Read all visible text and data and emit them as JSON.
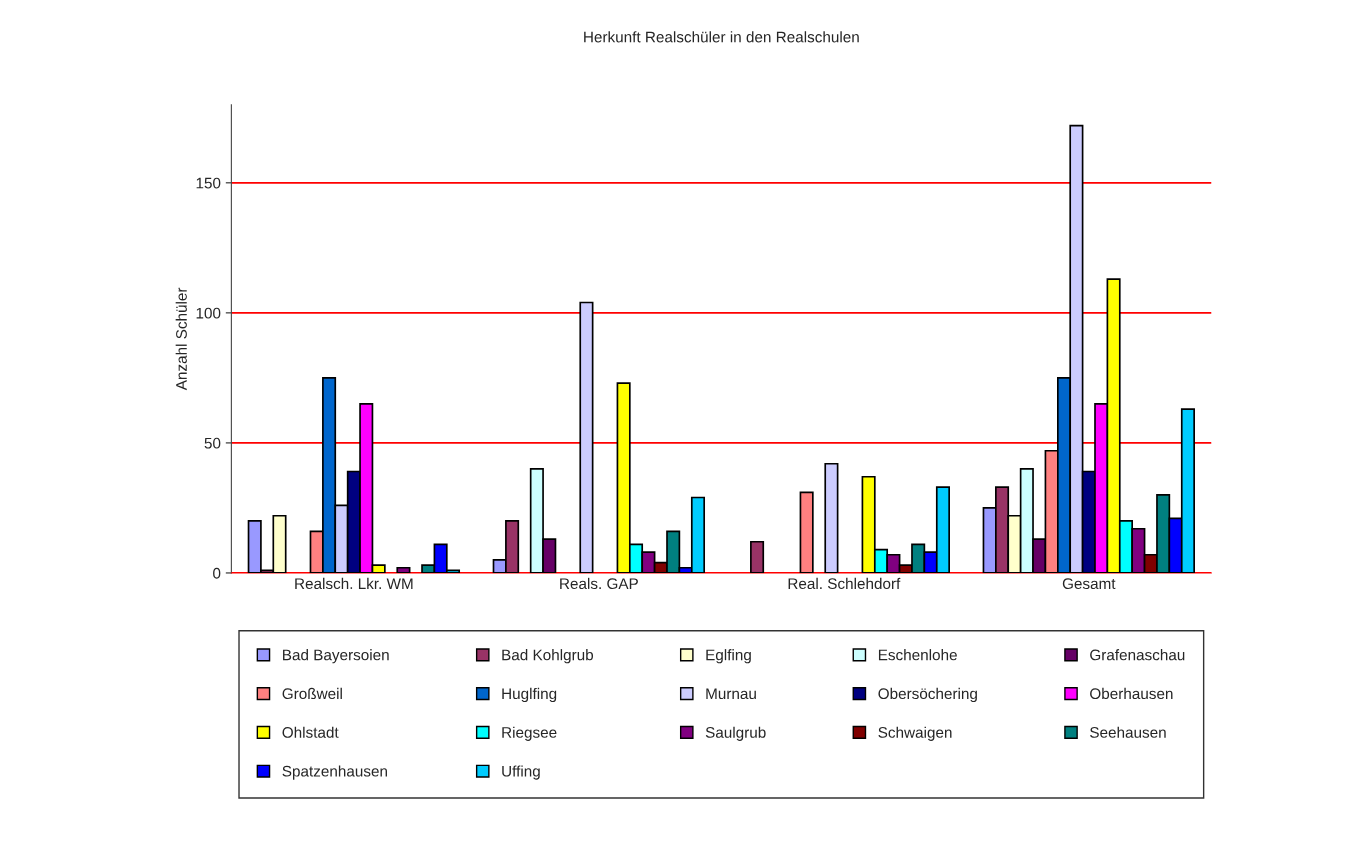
{
  "chart_data": {
    "type": "bar",
    "title": "Herkunft Realschüler in den Realschulen",
    "ylabel": "Anzahl Schüler",
    "categories": [
      "Realsch. Lkr. WM",
      "Reals. GAP",
      "Real. Schlehdorf",
      "Gesamt"
    ],
    "ylim": [
      0,
      180
    ],
    "yticks": [
      0,
      50,
      100,
      150
    ],
    "grid": "y",
    "legend": "bottom",
    "series": [
      {
        "name": "Bad Bayersoien",
        "color": "#9999ff",
        "values": [
          20,
          5,
          0,
          25
        ]
      },
      {
        "name": "Bad Kohlgrub",
        "color": "#993366",
        "values": [
          1,
          20,
          12,
          33
        ]
      },
      {
        "name": "Eglfing",
        "color": "#ffffcc",
        "values": [
          22,
          0,
          0,
          22
        ]
      },
      {
        "name": "Eschenlohe",
        "color": "#ccffff",
        "values": [
          0,
          40,
          0,
          40
        ]
      },
      {
        "name": "Grafenaschau",
        "color": "#660066",
        "values": [
          0,
          13,
          0,
          13
        ]
      },
      {
        "name": "Großweil",
        "color": "#ff8080",
        "values": [
          16,
          0,
          31,
          47
        ]
      },
      {
        "name": "Huglfing",
        "color": "#0066cc",
        "values": [
          75,
          0,
          0,
          75
        ]
      },
      {
        "name": "Murnau",
        "color": "#ccccff",
        "values": [
          26,
          104,
          42,
          172
        ]
      },
      {
        "name": "Obersöchering",
        "color": "#000080",
        "values": [
          39,
          0,
          0,
          39
        ]
      },
      {
        "name": "Oberhausen",
        "color": "#ff00ff",
        "values": [
          65,
          0,
          0,
          65
        ]
      },
      {
        "name": "Ohlstadt",
        "color": "#ffff00",
        "values": [
          3,
          73,
          37,
          113
        ]
      },
      {
        "name": "Riegsee",
        "color": "#00ffff",
        "values": [
          0,
          11,
          9,
          20
        ]
      },
      {
        "name": "Saulgrub",
        "color": "#800080",
        "values": [
          2,
          8,
          7,
          17
        ]
      },
      {
        "name": "Schwaigen",
        "color": "#800000",
        "values": [
          0,
          4,
          3,
          7
        ]
      },
      {
        "name": "Seehausen",
        "color": "#008080",
        "values": [
          3,
          16,
          11,
          30
        ]
      },
      {
        "name": "Spatzenhausen",
        "color": "#0000ff",
        "values": [
          11,
          2,
          8,
          21
        ]
      },
      {
        "name": "Uffing",
        "color": "#00ccff",
        "values": [
          1,
          29,
          33,
          63
        ]
      }
    ]
  }
}
